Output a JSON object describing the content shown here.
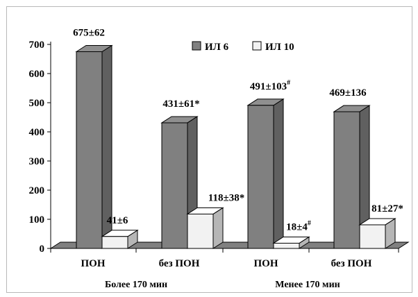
{
  "chart_data": {
    "type": "bar",
    "style": "3d-clustered-column",
    "groups": [
      "Более 170 мин",
      "Менее 170 мин"
    ],
    "categories": [
      "ПОН",
      "без ПОН",
      "ПОН",
      "без ПОН"
    ],
    "series": [
      {
        "name": "ИЛ 6",
        "color": "#808080",
        "values": [
          675,
          431,
          491,
          469
        ],
        "labels": [
          {
            "text": "675±62",
            "sup": ""
          },
          {
            "text": "431±61*",
            "sup": ""
          },
          {
            "text": "491±103",
            "sup": "#"
          },
          {
            "text": "469±136",
            "sup": ""
          }
        ]
      },
      {
        "name": "ИЛ 10",
        "color": "#f2f2f2",
        "values": [
          41,
          118,
          18,
          81
        ],
        "labels": [
          {
            "text": "41±6",
            "sup": ""
          },
          {
            "text": "118±38*",
            "sup": ""
          },
          {
            "text": "18±4",
            "sup": "#"
          },
          {
            "text": "81±27*",
            "sup": ""
          }
        ]
      }
    ],
    "y_ticks": [
      0,
      100,
      200,
      300,
      400,
      500,
      600,
      700
    ],
    "ylim": [
      0,
      700
    ],
    "grid": false,
    "legend_position": "top"
  }
}
